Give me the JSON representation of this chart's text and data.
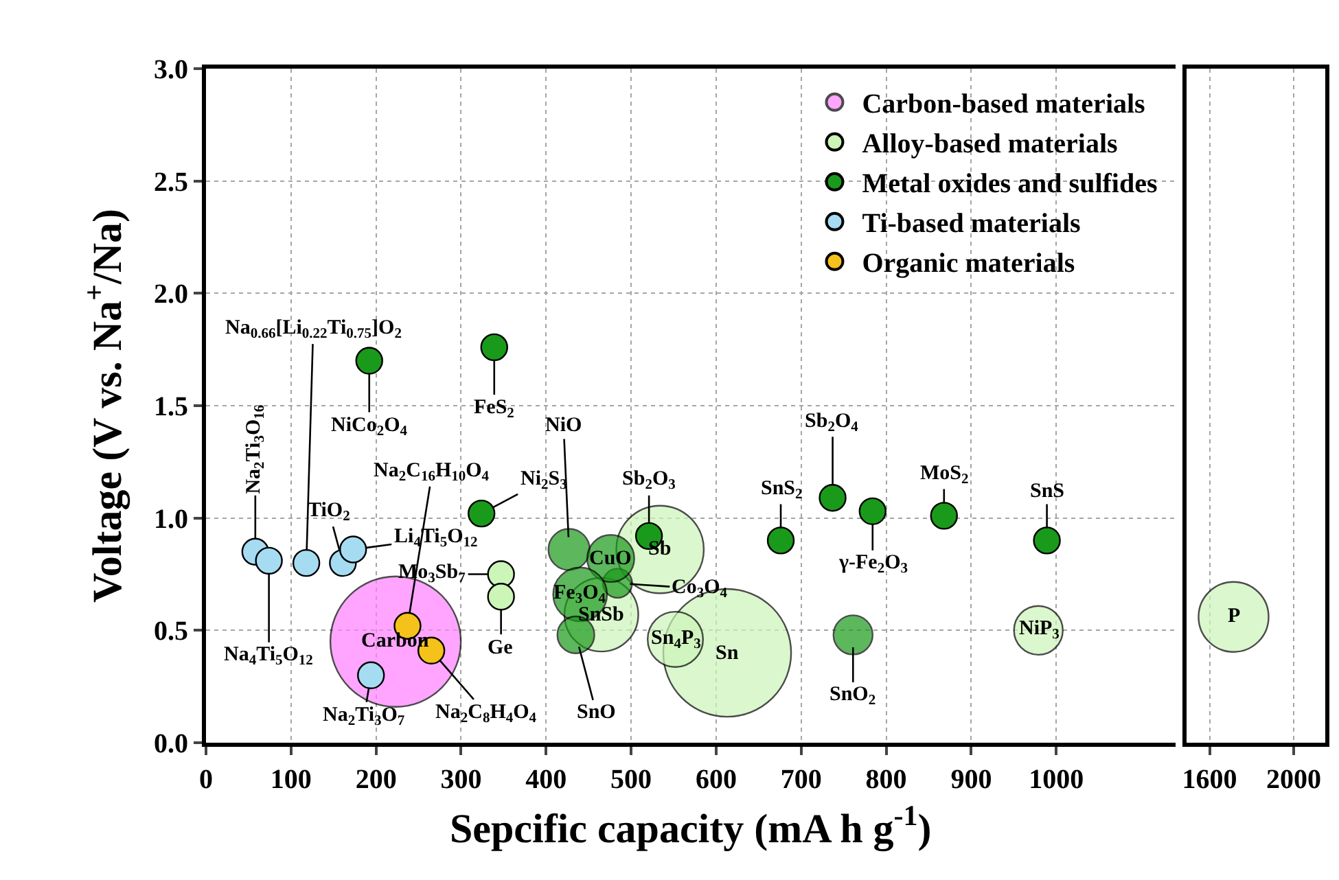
{
  "chart_data": [
    {
      "type": "scatter",
      "xlabel": "Sepcific capacity (mA h g$^{-1}$)",
      "ylabel": "Voltage (V vs. Na$^{+}$/Na)",
      "xlim": [
        0,
        1140
      ],
      "xticks": [
        0,
        100,
        200,
        300,
        400,
        500,
        600,
        700,
        800,
        900,
        1000
      ],
      "ylim": [
        0,
        3
      ],
      "yticks": [
        {
          "value": 0,
          "label": "0.0"
        },
        {
          "value": 0.5,
          "label": "0.5"
        },
        {
          "value": 1,
          "label": "1.0"
        },
        {
          "value": 1.5,
          "label": "1.5"
        },
        {
          "value": 2,
          "label": "2.0"
        },
        {
          "value": 2.5,
          "label": "2.5"
        },
        {
          "value": 3,
          "label": "3.0"
        }
      ],
      "grid": true,
      "legend": "top right",
      "marker": "circle",
      "series": [
        {
          "name": "Carbon-based materials",
          "type": "bubble",
          "color": "#ff80ff",
          "x": [
            223
          ],
          "values": [
            0.45
          ],
          "sizes": [
            1
          ]
        },
        {
          "type": "bubble",
          "color": "#ccf5b8",
          "x": [
            613,
            534,
            465,
            552,
            979
          ],
          "values": [
            0.4,
            0.86,
            0.57,
            0.46,
            0.5
          ],
          "sizes": [
            0.96,
            0.45,
            0.32,
            0.18,
            0.14
          ]
        },
        {
          "type": "bubble",
          "color": "#1a9a1a",
          "x": [
            427,
            484,
            476,
            440,
            435,
            761
          ],
          "values": [
            0.86,
            0.71,
            0.82,
            0.66,
            0.48,
            0.48
          ],
          "sizes": [
            0.1,
            0.05,
            0.13,
            0.17,
            0.08,
            0.09
          ]
        },
        {
          "name": "Alloy-based materials",
          "color": "#ccf5b8",
          "x": [
            347,
            347
          ],
          "values": [
            0.75,
            0.65
          ]
        },
        {
          "name": "Metal oxides and sulfides",
          "color": "#1a9a1a",
          "x": [
            192,
            339,
            324,
            521,
            676,
            737,
            784,
            868,
            989
          ],
          "values": [
            1.7,
            1.76,
            1.02,
            0.92,
            0.9,
            1.09,
            1.03,
            1.01,
            0.9
          ]
        },
        {
          "name": "Ti-based materials",
          "color": "#a6dcf2",
          "x": [
            58,
            74,
            118,
            161,
            173,
            194
          ],
          "values": [
            0.85,
            0.81,
            0.8,
            0.8,
            0.86,
            0.3
          ]
        },
        {
          "name": "Organic materials",
          "color": "#f5c21b",
          "x": [
            237,
            265
          ],
          "values": [
            0.52,
            0.41
          ]
        }
      ],
      "annotations": [
        {
          "text": "Na$_{2}$Ti$_{3}$O$_{16}$",
          "x": 58,
          "y": 0.85
        },
        {
          "text": "Na$_{0.66}$[Li$_{0.22}$Ti$_{0.75}$]O$_{2}$",
          "x": 118,
          "y": 0.8
        },
        {
          "text": "Na$_{4}$Ti$_{5}$O$_{12}$",
          "x": 74,
          "y": 0.81
        },
        {
          "text": "TiO$_{2}$",
          "x": 161,
          "y": 0.8
        },
        {
          "text": "Li$_{4}$Ti$_{5}$O$_{12}$",
          "x": 173,
          "y": 0.86
        },
        {
          "text": "Na$_{2}$Ti$_{3}$O$_{7}$",
          "x": 194,
          "y": 0.3
        },
        {
          "text": "Na$_{2}$C$_{16}$H$_{10}$O$_{4}$",
          "x": 237,
          "y": 0.52
        },
        {
          "text": "Na$_{2}$C$_{8}$H$_{4}$O$_{4}$",
          "x": 265,
          "y": 0.41
        },
        {
          "text": "SnO",
          "x": 435,
          "y": 0.48
        },
        {
          "text": "NiCo$_{2}$O$_{4}$",
          "x": 192,
          "y": 1.7
        },
        {
          "text": "FeS$_{2}$",
          "x": 339,
          "y": 1.76
        },
        {
          "text": "Ni$_{2}$S$_{3}$",
          "x": 324,
          "y": 1.02
        },
        {
          "text": "NiO",
          "x": 427,
          "y": 0.86
        },
        {
          "text": "Sb$_{2}$O$_{3}$",
          "x": 521,
          "y": 0.92
        },
        {
          "text": "SnS$_{2}$",
          "x": 676,
          "y": 0.9
        },
        {
          "text": "Sb$_{2}$O$_{4}$",
          "x": 737,
          "y": 1.09
        },
        {
          "text": "γ-Fe$_{2}$O$_{3}$",
          "x": 784,
          "y": 1.03
        },
        {
          "text": "MoS$_{2}$",
          "x": 868,
          "y": 1.01
        },
        {
          "text": "SnS",
          "x": 989,
          "y": 0.9
        },
        {
          "text": "Co$_{3}$O$_{4}$",
          "x": 484,
          "y": 0.71
        },
        {
          "text": "SnO$_{2}$",
          "x": 761,
          "y": 0.48
        },
        {
          "text": "Mo$_{3}$Sb$_{7}$",
          "x": 347,
          "y": 0.75
        },
        {
          "text": "Ge",
          "x": 347,
          "y": 0.65
        },
        {
          "text": "Fe$_{3}$O$_{4}$",
          "x": 440,
          "y": 0.66
        },
        {
          "text": "CuO",
          "x": 476,
          "y": 0.82
        },
        {
          "text": "Carbon",
          "x": 223,
          "y": 0.45
        },
        {
          "text": "Sb",
          "x": 534,
          "y": 0.86
        },
        {
          "text": "SnSb",
          "x": 465,
          "y": 0.57
        },
        {
          "text": "Sn$_{4}$P$_{3}$",
          "x": 552,
          "y": 0.46
        },
        {
          "text": "Sn",
          "x": 613,
          "y": 0.4
        },
        {
          "text": "NiP$_{3}$",
          "x": 979,
          "y": 0.5
        }
      ]
    },
    {
      "type": "scatter",
      "xlim": [
        1490,
        2150
      ],
      "xticks": [
        1600,
        2000
      ],
      "ylim": [
        0,
        3
      ],
      "tick_labels": "x",
      "grid": true,
      "series": [
        {
          "type": "bubble",
          "color": "#ccf5b8",
          "x": [
            1714
          ],
          "values": [
            0.56
          ],
          "sizes": [
            1
          ]
        }
      ],
      "annotations": [
        {
          "text": "P",
          "x": 1714,
          "y": 0.56
        }
      ]
    }
  ]
}
